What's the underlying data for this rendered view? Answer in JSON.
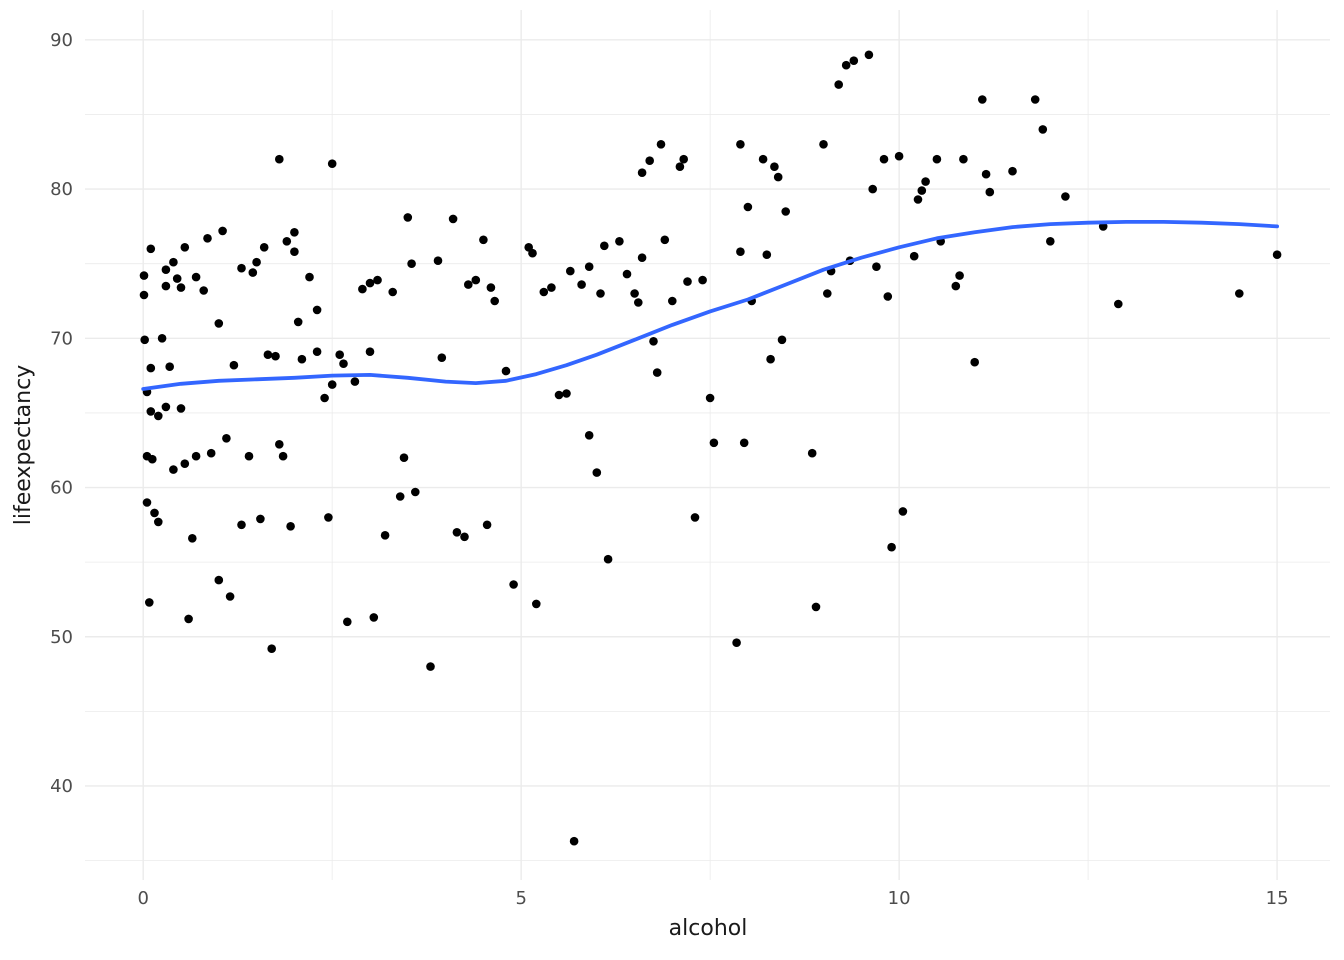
{
  "figure": {
    "background": "#FFFFFF"
  },
  "chart_data": {
    "type": "scatter",
    "title": "",
    "xlabel": "alcohol",
    "ylabel": "lifeexpectancy",
    "xlim": [
      -0.77,
      15.7
    ],
    "ylim": [
      33.7,
      92.0
    ],
    "x_ticks": [
      0,
      5,
      10,
      15
    ],
    "y_ticks": [
      40,
      50,
      60,
      70,
      80,
      90
    ],
    "x_minor_ticks": [
      2.5,
      7.5,
      12.5
    ],
    "y_minor_ticks": [
      35,
      45,
      55,
      65,
      75,
      85
    ],
    "grid": true,
    "legend": "none",
    "grid_color": "#EBEBEB",
    "point_color": "#000000",
    "smooth_color": "#3366FF",
    "tick_label_color": "#4D4D4D",
    "axis_title_color": "#1A1A1A",
    "points": [
      [
        0.01,
        74.2
      ],
      [
        0.01,
        72.9
      ],
      [
        0.02,
        69.9
      ],
      [
        0.05,
        66.4
      ],
      [
        0.05,
        62.1
      ],
      [
        0.05,
        59.0
      ],
      [
        0.08,
        52.3
      ],
      [
        0.1,
        76.0
      ],
      [
        0.1,
        68.0
      ],
      [
        0.1,
        65.1
      ],
      [
        0.12,
        61.9
      ],
      [
        0.15,
        58.3
      ],
      [
        0.2,
        57.7
      ],
      [
        0.2,
        64.8
      ],
      [
        0.25,
        70.0
      ],
      [
        0.3,
        74.6
      ],
      [
        0.3,
        73.5
      ],
      [
        0.3,
        65.4
      ],
      [
        0.35,
        68.1
      ],
      [
        0.4,
        75.1
      ],
      [
        0.4,
        61.2
      ],
      [
        0.45,
        74.0
      ],
      [
        0.5,
        73.4
      ],
      [
        0.5,
        65.3
      ],
      [
        0.55,
        76.1
      ],
      [
        0.55,
        61.6
      ],
      [
        0.6,
        51.2
      ],
      [
        0.65,
        56.6
      ],
      [
        0.7,
        74.1
      ],
      [
        0.7,
        62.1
      ],
      [
        0.8,
        73.2
      ],
      [
        0.85,
        76.7
      ],
      [
        0.9,
        62.3
      ],
      [
        1.0,
        71.0
      ],
      [
        1.0,
        53.8
      ],
      [
        1.05,
        77.2
      ],
      [
        1.1,
        63.3
      ],
      [
        1.15,
        52.7
      ],
      [
        1.2,
        68.2
      ],
      [
        1.3,
        74.7
      ],
      [
        1.3,
        57.5
      ],
      [
        1.4,
        62.1
      ],
      [
        1.45,
        74.4
      ],
      [
        1.5,
        75.1
      ],
      [
        1.55,
        57.9
      ],
      [
        1.6,
        76.1
      ],
      [
        1.65,
        68.9
      ],
      [
        1.7,
        49.2
      ],
      [
        1.75,
        68.8
      ],
      [
        1.8,
        82.0
      ],
      [
        1.8,
        62.9
      ],
      [
        1.85,
        62.1
      ],
      [
        1.9,
        76.5
      ],
      [
        1.95,
        57.4
      ],
      [
        2.0,
        77.1
      ],
      [
        2.0,
        75.8
      ],
      [
        2.05,
        71.1
      ],
      [
        2.1,
        68.6
      ],
      [
        2.2,
        74.1
      ],
      [
        2.3,
        71.9
      ],
      [
        2.3,
        69.1
      ],
      [
        2.4,
        66.0
      ],
      [
        2.45,
        58.0
      ],
      [
        2.5,
        81.7
      ],
      [
        2.5,
        66.9
      ],
      [
        2.6,
        68.9
      ],
      [
        2.65,
        68.3
      ],
      [
        2.7,
        51.0
      ],
      [
        2.8,
        67.1
      ],
      [
        2.9,
        73.3
      ],
      [
        3.0,
        73.7
      ],
      [
        3.0,
        69.1
      ],
      [
        3.05,
        51.3
      ],
      [
        3.1,
        73.9
      ],
      [
        3.2,
        56.8
      ],
      [
        3.3,
        73.1
      ],
      [
        3.4,
        59.4
      ],
      [
        3.45,
        62.0
      ],
      [
        3.5,
        78.1
      ],
      [
        3.55,
        75.0
      ],
      [
        3.6,
        59.7
      ],
      [
        3.8,
        48.0
      ],
      [
        3.9,
        75.2
      ],
      [
        3.95,
        68.7
      ],
      [
        4.1,
        78.0
      ],
      [
        4.15,
        57.0
      ],
      [
        4.25,
        56.7
      ],
      [
        4.3,
        73.6
      ],
      [
        4.4,
        73.9
      ],
      [
        4.5,
        76.6
      ],
      [
        4.55,
        57.5
      ],
      [
        4.6,
        73.4
      ],
      [
        4.65,
        72.5
      ],
      [
        4.8,
        67.8
      ],
      [
        4.9,
        53.5
      ],
      [
        5.1,
        76.1
      ],
      [
        5.15,
        75.7
      ],
      [
        5.2,
        52.2
      ],
      [
        5.3,
        73.1
      ],
      [
        5.4,
        73.4
      ],
      [
        5.5,
        66.2
      ],
      [
        5.6,
        66.3
      ],
      [
        5.65,
        74.5
      ],
      [
        5.7,
        36.3
      ],
      [
        5.8,
        73.6
      ],
      [
        5.9,
        74.8
      ],
      [
        5.9,
        63.5
      ],
      [
        6.0,
        61.0
      ],
      [
        6.05,
        73.0
      ],
      [
        6.1,
        76.2
      ],
      [
        6.15,
        55.2
      ],
      [
        6.3,
        76.5
      ],
      [
        6.4,
        74.3
      ],
      [
        6.5,
        73.0
      ],
      [
        6.55,
        72.4
      ],
      [
        6.6,
        75.4
      ],
      [
        6.6,
        81.1
      ],
      [
        6.7,
        81.9
      ],
      [
        6.75,
        69.8
      ],
      [
        6.8,
        67.7
      ],
      [
        6.85,
        83.0
      ],
      [
        6.9,
        76.6
      ],
      [
        7.0,
        72.5
      ],
      [
        7.1,
        81.5
      ],
      [
        7.15,
        82.0
      ],
      [
        7.2,
        73.8
      ],
      [
        7.3,
        58.0
      ],
      [
        7.4,
        73.9
      ],
      [
        7.5,
        66.0
      ],
      [
        7.55,
        63.0
      ],
      [
        7.85,
        49.6
      ],
      [
        7.9,
        83.0
      ],
      [
        7.9,
        75.8
      ],
      [
        7.95,
        63.0
      ],
      [
        8.0,
        78.8
      ],
      [
        8.05,
        72.5
      ],
      [
        8.2,
        82.0
      ],
      [
        8.25,
        75.6
      ],
      [
        8.3,
        68.6
      ],
      [
        8.35,
        81.5
      ],
      [
        8.4,
        80.8
      ],
      [
        8.45,
        69.9
      ],
      [
        8.5,
        78.5
      ],
      [
        8.85,
        62.3
      ],
      [
        8.9,
        52.0
      ],
      [
        9.0,
        83.0
      ],
      [
        9.05,
        73.0
      ],
      [
        9.1,
        74.5
      ],
      [
        9.2,
        87.0
      ],
      [
        9.3,
        88.3
      ],
      [
        9.35,
        75.2
      ],
      [
        9.4,
        88.6
      ],
      [
        9.6,
        89.0
      ],
      [
        9.65,
        80.0
      ],
      [
        9.7,
        74.8
      ],
      [
        9.8,
        82.0
      ],
      [
        9.85,
        72.8
      ],
      [
        9.9,
        56.0
      ],
      [
        10.0,
        82.2
      ],
      [
        10.05,
        58.4
      ],
      [
        10.2,
        75.5
      ],
      [
        10.25,
        79.3
      ],
      [
        10.3,
        79.9
      ],
      [
        10.35,
        80.5
      ],
      [
        10.5,
        82.0
      ],
      [
        10.55,
        76.5
      ],
      [
        10.75,
        73.5
      ],
      [
        10.8,
        74.2
      ],
      [
        10.85,
        82.0
      ],
      [
        11.0,
        68.4
      ],
      [
        11.1,
        86.0
      ],
      [
        11.15,
        81.0
      ],
      [
        11.2,
        79.8
      ],
      [
        11.5,
        81.2
      ],
      [
        11.8,
        86.0
      ],
      [
        11.9,
        84.0
      ],
      [
        12.0,
        76.5
      ],
      [
        12.2,
        79.5
      ],
      [
        12.7,
        77.5
      ],
      [
        12.9,
        72.3
      ],
      [
        14.5,
        73.0
      ],
      [
        15.0,
        75.6
      ]
    ],
    "smooth_line": [
      [
        0,
        66.6
      ],
      [
        0.5,
        66.95
      ],
      [
        1,
        67.15
      ],
      [
        1.5,
        67.25
      ],
      [
        2,
        67.35
      ],
      [
        2.5,
        67.5
      ],
      [
        3,
        67.55
      ],
      [
        3.5,
        67.35
      ],
      [
        4,
        67.1
      ],
      [
        4.4,
        67.0
      ],
      [
        4.8,
        67.15
      ],
      [
        5.2,
        67.6
      ],
      [
        5.6,
        68.2
      ],
      [
        6,
        68.9
      ],
      [
        6.5,
        69.9
      ],
      [
        7,
        70.9
      ],
      [
        7.5,
        71.8
      ],
      [
        8,
        72.6
      ],
      [
        8.5,
        73.6
      ],
      [
        9,
        74.6
      ],
      [
        9.5,
        75.4
      ],
      [
        10,
        76.1
      ],
      [
        10.5,
        76.7
      ],
      [
        11,
        77.1
      ],
      [
        11.5,
        77.45
      ],
      [
        12,
        77.65
      ],
      [
        12.5,
        77.75
      ],
      [
        13,
        77.8
      ],
      [
        13.5,
        77.8
      ],
      [
        14,
        77.75
      ],
      [
        14.5,
        77.65
      ],
      [
        15,
        77.5
      ]
    ]
  }
}
